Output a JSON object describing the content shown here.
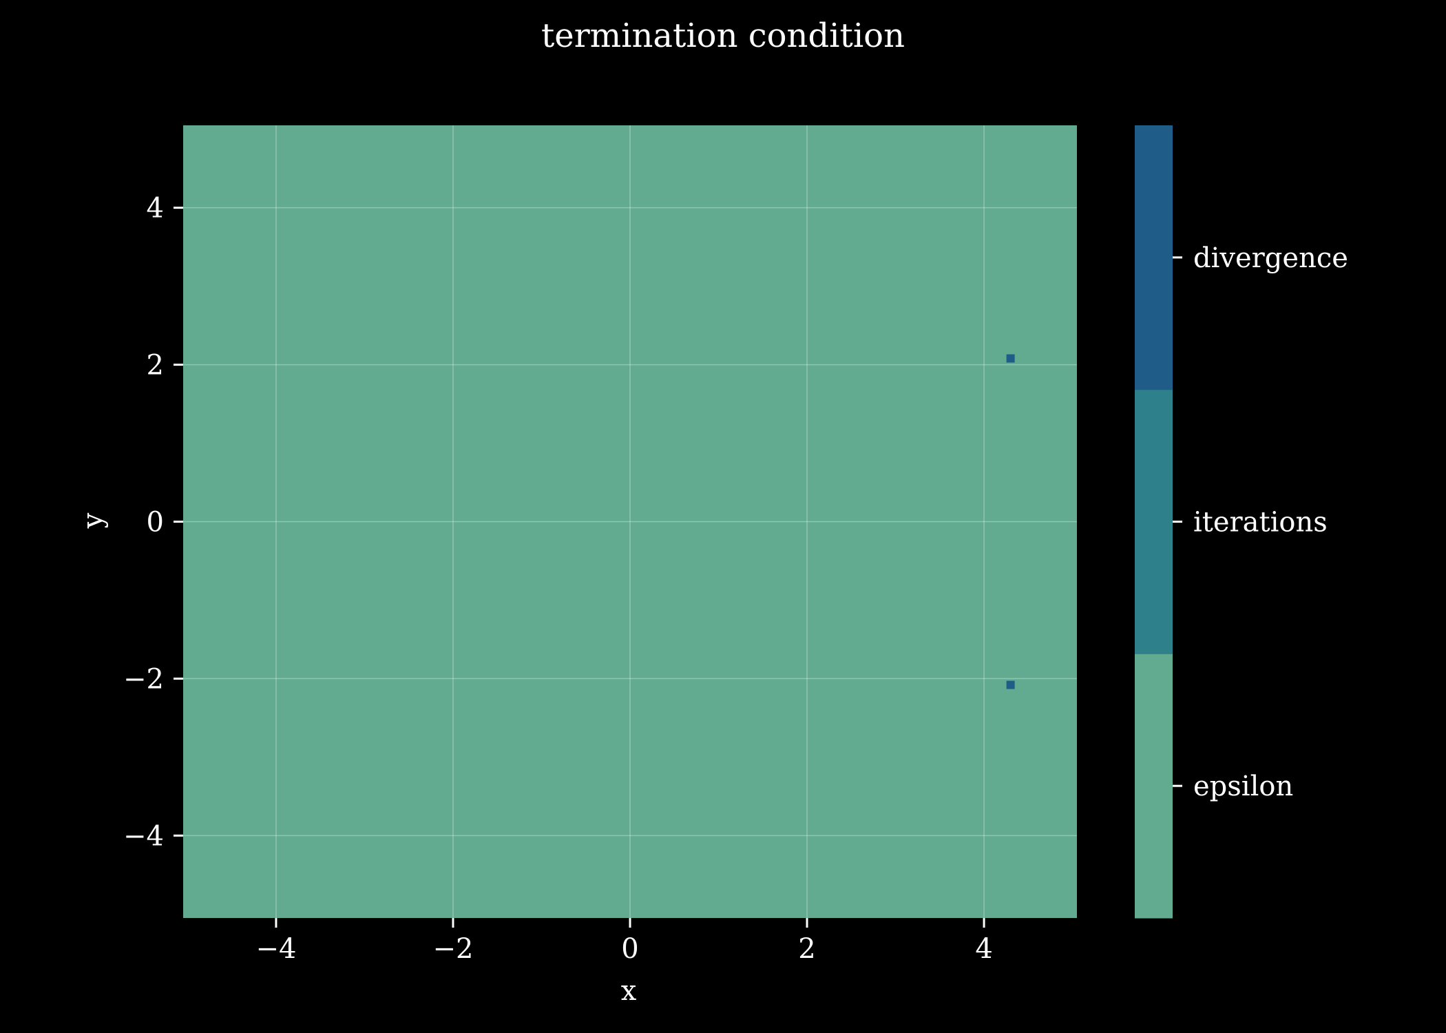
{
  "chart_data": {
    "type": "heatmap",
    "title": "termination condition",
    "xlabel": "x",
    "ylabel": "y",
    "xlim": [
      -5.05,
      5.05
    ],
    "ylim": [
      -5.05,
      5.05
    ],
    "xticks": [
      -4,
      -2,
      0,
      2,
      4
    ],
    "yticks": [
      -4,
      -2,
      0,
      2,
      4
    ],
    "xtick_labels": [
      "−4",
      "−2",
      "0",
      "2",
      "4"
    ],
    "ytick_labels": [
      "−4",
      "−2",
      "0",
      "2",
      "4"
    ],
    "grid": true,
    "background_category": "epsilon",
    "categories": [
      {
        "label": "epsilon",
        "value": 0,
        "color": "#62ab91"
      },
      {
        "label": "iterations",
        "value": 1,
        "color": "#2e808a"
      },
      {
        "label": "divergence",
        "value": 2,
        "color": "#1f5c87"
      }
    ],
    "cells": [
      {
        "x": 4.3,
        "y": 2.08,
        "category": "divergence"
      },
      {
        "x": 4.3,
        "y": -2.08,
        "category": "divergence"
      }
    ],
    "colorbar": {
      "placement": "right",
      "ticks": [
        "epsilon",
        "iterations",
        "divergence"
      ]
    },
    "colors": {
      "background": "#000000",
      "text": "#ffffff",
      "grid": "#ffffff"
    }
  }
}
